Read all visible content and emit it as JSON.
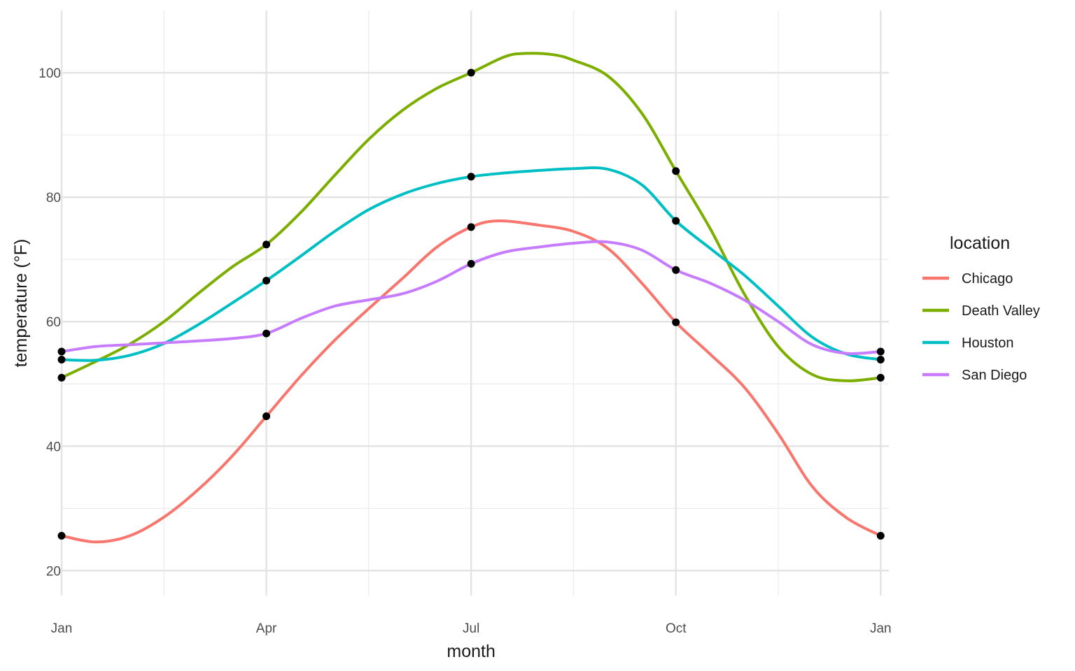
{
  "chart_data": {
    "type": "line",
    "title": "",
    "xlabel": "month",
    "ylabel": "temperature (°F)",
    "x_ticks": [
      "Jan",
      "Apr",
      "Jul",
      "Oct",
      "Jan"
    ],
    "x_tick_values": [
      0,
      3,
      6,
      9,
      12
    ],
    "y_ticks": [
      "20",
      "40",
      "60",
      "80",
      "100"
    ],
    "y_tick_values": [
      20,
      40,
      60,
      80,
      100
    ],
    "xlim": [
      0,
      12.12
    ],
    "ylim": [
      16,
      110
    ],
    "grid": true,
    "legend": {
      "title": "location",
      "position": "right"
    },
    "series": [
      {
        "name": "Chicago",
        "color": "#F8766D",
        "points": [
          [
            0,
            25.6
          ],
          [
            3,
            44.8
          ],
          [
            6,
            75.2
          ],
          [
            9,
            59.9
          ],
          [
            12,
            25.6
          ]
        ],
        "curve": [
          [
            0,
            25.6
          ],
          [
            0.5,
            24.6
          ],
          [
            1,
            25.6
          ],
          [
            1.5,
            28.6
          ],
          [
            2,
            33
          ],
          [
            2.5,
            38.4
          ],
          [
            3,
            44.8
          ],
          [
            3.5,
            51.2
          ],
          [
            4,
            57
          ],
          [
            4.5,
            62.1
          ],
          [
            5,
            67
          ],
          [
            5.5,
            72
          ],
          [
            6,
            75.2
          ],
          [
            6.4,
            76.2
          ],
          [
            7,
            75.5
          ],
          [
            7.5,
            74.5
          ],
          [
            8,
            71.8
          ],
          [
            8.5,
            66.2
          ],
          [
            9,
            59.9
          ],
          [
            9.5,
            54.8
          ],
          [
            10,
            49.5
          ],
          [
            10.5,
            42
          ],
          [
            11,
            33.5
          ],
          [
            11.5,
            28.5
          ],
          [
            12,
            25.6
          ]
        ]
      },
      {
        "name": "Death Valley",
        "color": "#7CAE00",
        "points": [
          [
            0,
            51
          ],
          [
            3,
            72.4
          ],
          [
            6,
            100
          ],
          [
            9,
            84.2
          ],
          [
            12,
            51
          ]
        ],
        "curve": [
          [
            0,
            51
          ],
          [
            0.5,
            53.6
          ],
          [
            1,
            56.4
          ],
          [
            1.5,
            60
          ],
          [
            2,
            64.5
          ],
          [
            2.5,
            68.8
          ],
          [
            3,
            72.4
          ],
          [
            3.5,
            77.5
          ],
          [
            4,
            83.5
          ],
          [
            4.5,
            89.3
          ],
          [
            5,
            94
          ],
          [
            5.5,
            97.5
          ],
          [
            6,
            100
          ],
          [
            6.5,
            102.6
          ],
          [
            6.8,
            103.1
          ],
          [
            7.2,
            102.9
          ],
          [
            7.5,
            102
          ],
          [
            8,
            99.5
          ],
          [
            8.5,
            93.5
          ],
          [
            9,
            84.2
          ],
          [
            9.5,
            75
          ],
          [
            10,
            64.5
          ],
          [
            10.5,
            56
          ],
          [
            11,
            51.5
          ],
          [
            11.5,
            50.5
          ],
          [
            12,
            51
          ]
        ]
      },
      {
        "name": "Houston",
        "color": "#00BFC4",
        "points": [
          [
            0,
            53.9
          ],
          [
            3,
            66.6
          ],
          [
            6,
            83.3
          ],
          [
            9,
            76.2
          ],
          [
            12,
            53.9
          ]
        ],
        "curve": [
          [
            0,
            53.9
          ],
          [
            0.5,
            53.8
          ],
          [
            1,
            54.6
          ],
          [
            1.5,
            56.5
          ],
          [
            2,
            59.5
          ],
          [
            2.5,
            63
          ],
          [
            3,
            66.6
          ],
          [
            3.5,
            70.5
          ],
          [
            4,
            74.5
          ],
          [
            4.5,
            78
          ],
          [
            5,
            80.5
          ],
          [
            5.5,
            82.2
          ],
          [
            6,
            83.3
          ],
          [
            6.5,
            83.9
          ],
          [
            7,
            84.3
          ],
          [
            7.5,
            84.6
          ],
          [
            8,
            84.5
          ],
          [
            8.5,
            82
          ],
          [
            9,
            76.2
          ],
          [
            9.5,
            71.8
          ],
          [
            10,
            67.5
          ],
          [
            10.5,
            62.5
          ],
          [
            11,
            57.5
          ],
          [
            11.5,
            54.8
          ],
          [
            12,
            53.9
          ]
        ]
      },
      {
        "name": "San Diego",
        "color": "#C77CFF",
        "points": [
          [
            0,
            55.2
          ],
          [
            3,
            58.1
          ],
          [
            6,
            69.3
          ],
          [
            9,
            68.3
          ],
          [
            12,
            55.2
          ]
        ],
        "curve": [
          [
            0,
            55.2
          ],
          [
            0.5,
            56
          ],
          [
            1,
            56.3
          ],
          [
            1.5,
            56.6
          ],
          [
            2,
            56.9
          ],
          [
            2.5,
            57.3
          ],
          [
            3,
            58.1
          ],
          [
            3.5,
            60.5
          ],
          [
            4,
            62.5
          ],
          [
            4.5,
            63.5
          ],
          [
            5,
            64.5
          ],
          [
            5.5,
            66.5
          ],
          [
            6,
            69.3
          ],
          [
            6.5,
            71.2
          ],
          [
            7,
            72
          ],
          [
            7.5,
            72.6
          ],
          [
            8,
            72.8
          ],
          [
            8.5,
            71.5
          ],
          [
            9,
            68.3
          ],
          [
            9.5,
            66.2
          ],
          [
            10,
            63.5
          ],
          [
            10.5,
            60
          ],
          [
            11,
            56.3
          ],
          [
            11.5,
            54.9
          ],
          [
            12,
            55.2
          ]
        ]
      }
    ]
  }
}
